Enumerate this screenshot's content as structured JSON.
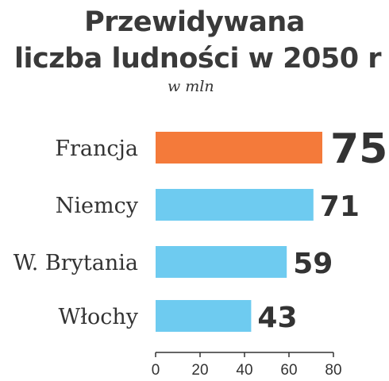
{
  "chart_data": {
    "type": "bar",
    "orientation": "horizontal",
    "title": [
      "Przewidywana",
      "liczba ludności w 2050 r"
    ],
    "subtitle": "w mln",
    "categories": [
      "Francja",
      "Niemcy",
      "W. Brytania",
      "Włochy"
    ],
    "values": [
      75,
      71,
      59,
      43
    ],
    "colors": [
      "#f47a3a",
      "#6ecbf0",
      "#6ecbf0",
      "#6ecbf0"
    ],
    "xlim": [
      0,
      80
    ],
    "xticks": [
      "0",
      "20",
      "40",
      "60",
      "80"
    ],
    "grid": false,
    "legend": "none"
  }
}
